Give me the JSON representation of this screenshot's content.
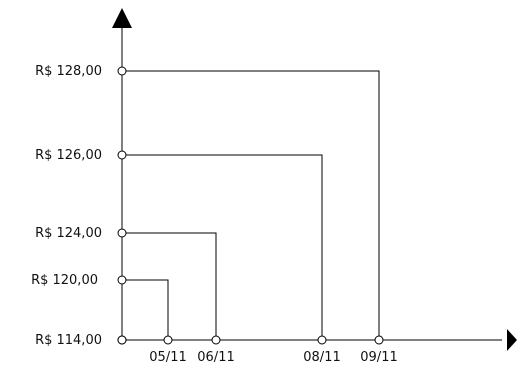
{
  "chart_data": {
    "type": "line",
    "title": "",
    "xlabel": "",
    "ylabel": "",
    "y_tick_labels": [
      "R$ 114,00",
      "R$ 120,00",
      "R$ 124,00",
      "R$ 126,00",
      "R$ 128,00"
    ],
    "x_tick_labels": [
      "05/11",
      "06/11",
      "08/11",
      "09/11"
    ],
    "points": [
      {
        "date": "05/11",
        "value": 120
      },
      {
        "date": "06/11",
        "value": 124
      },
      {
        "date": "08/11",
        "value": 126
      },
      {
        "date": "09/11",
        "value": 128
      }
    ],
    "baseline_value": 114,
    "grid": false,
    "legend": "none",
    "colors": {
      "line": "#000000",
      "marker_fill": "#ffffff",
      "marker_stroke": "#000000",
      "text": "#111111"
    }
  }
}
